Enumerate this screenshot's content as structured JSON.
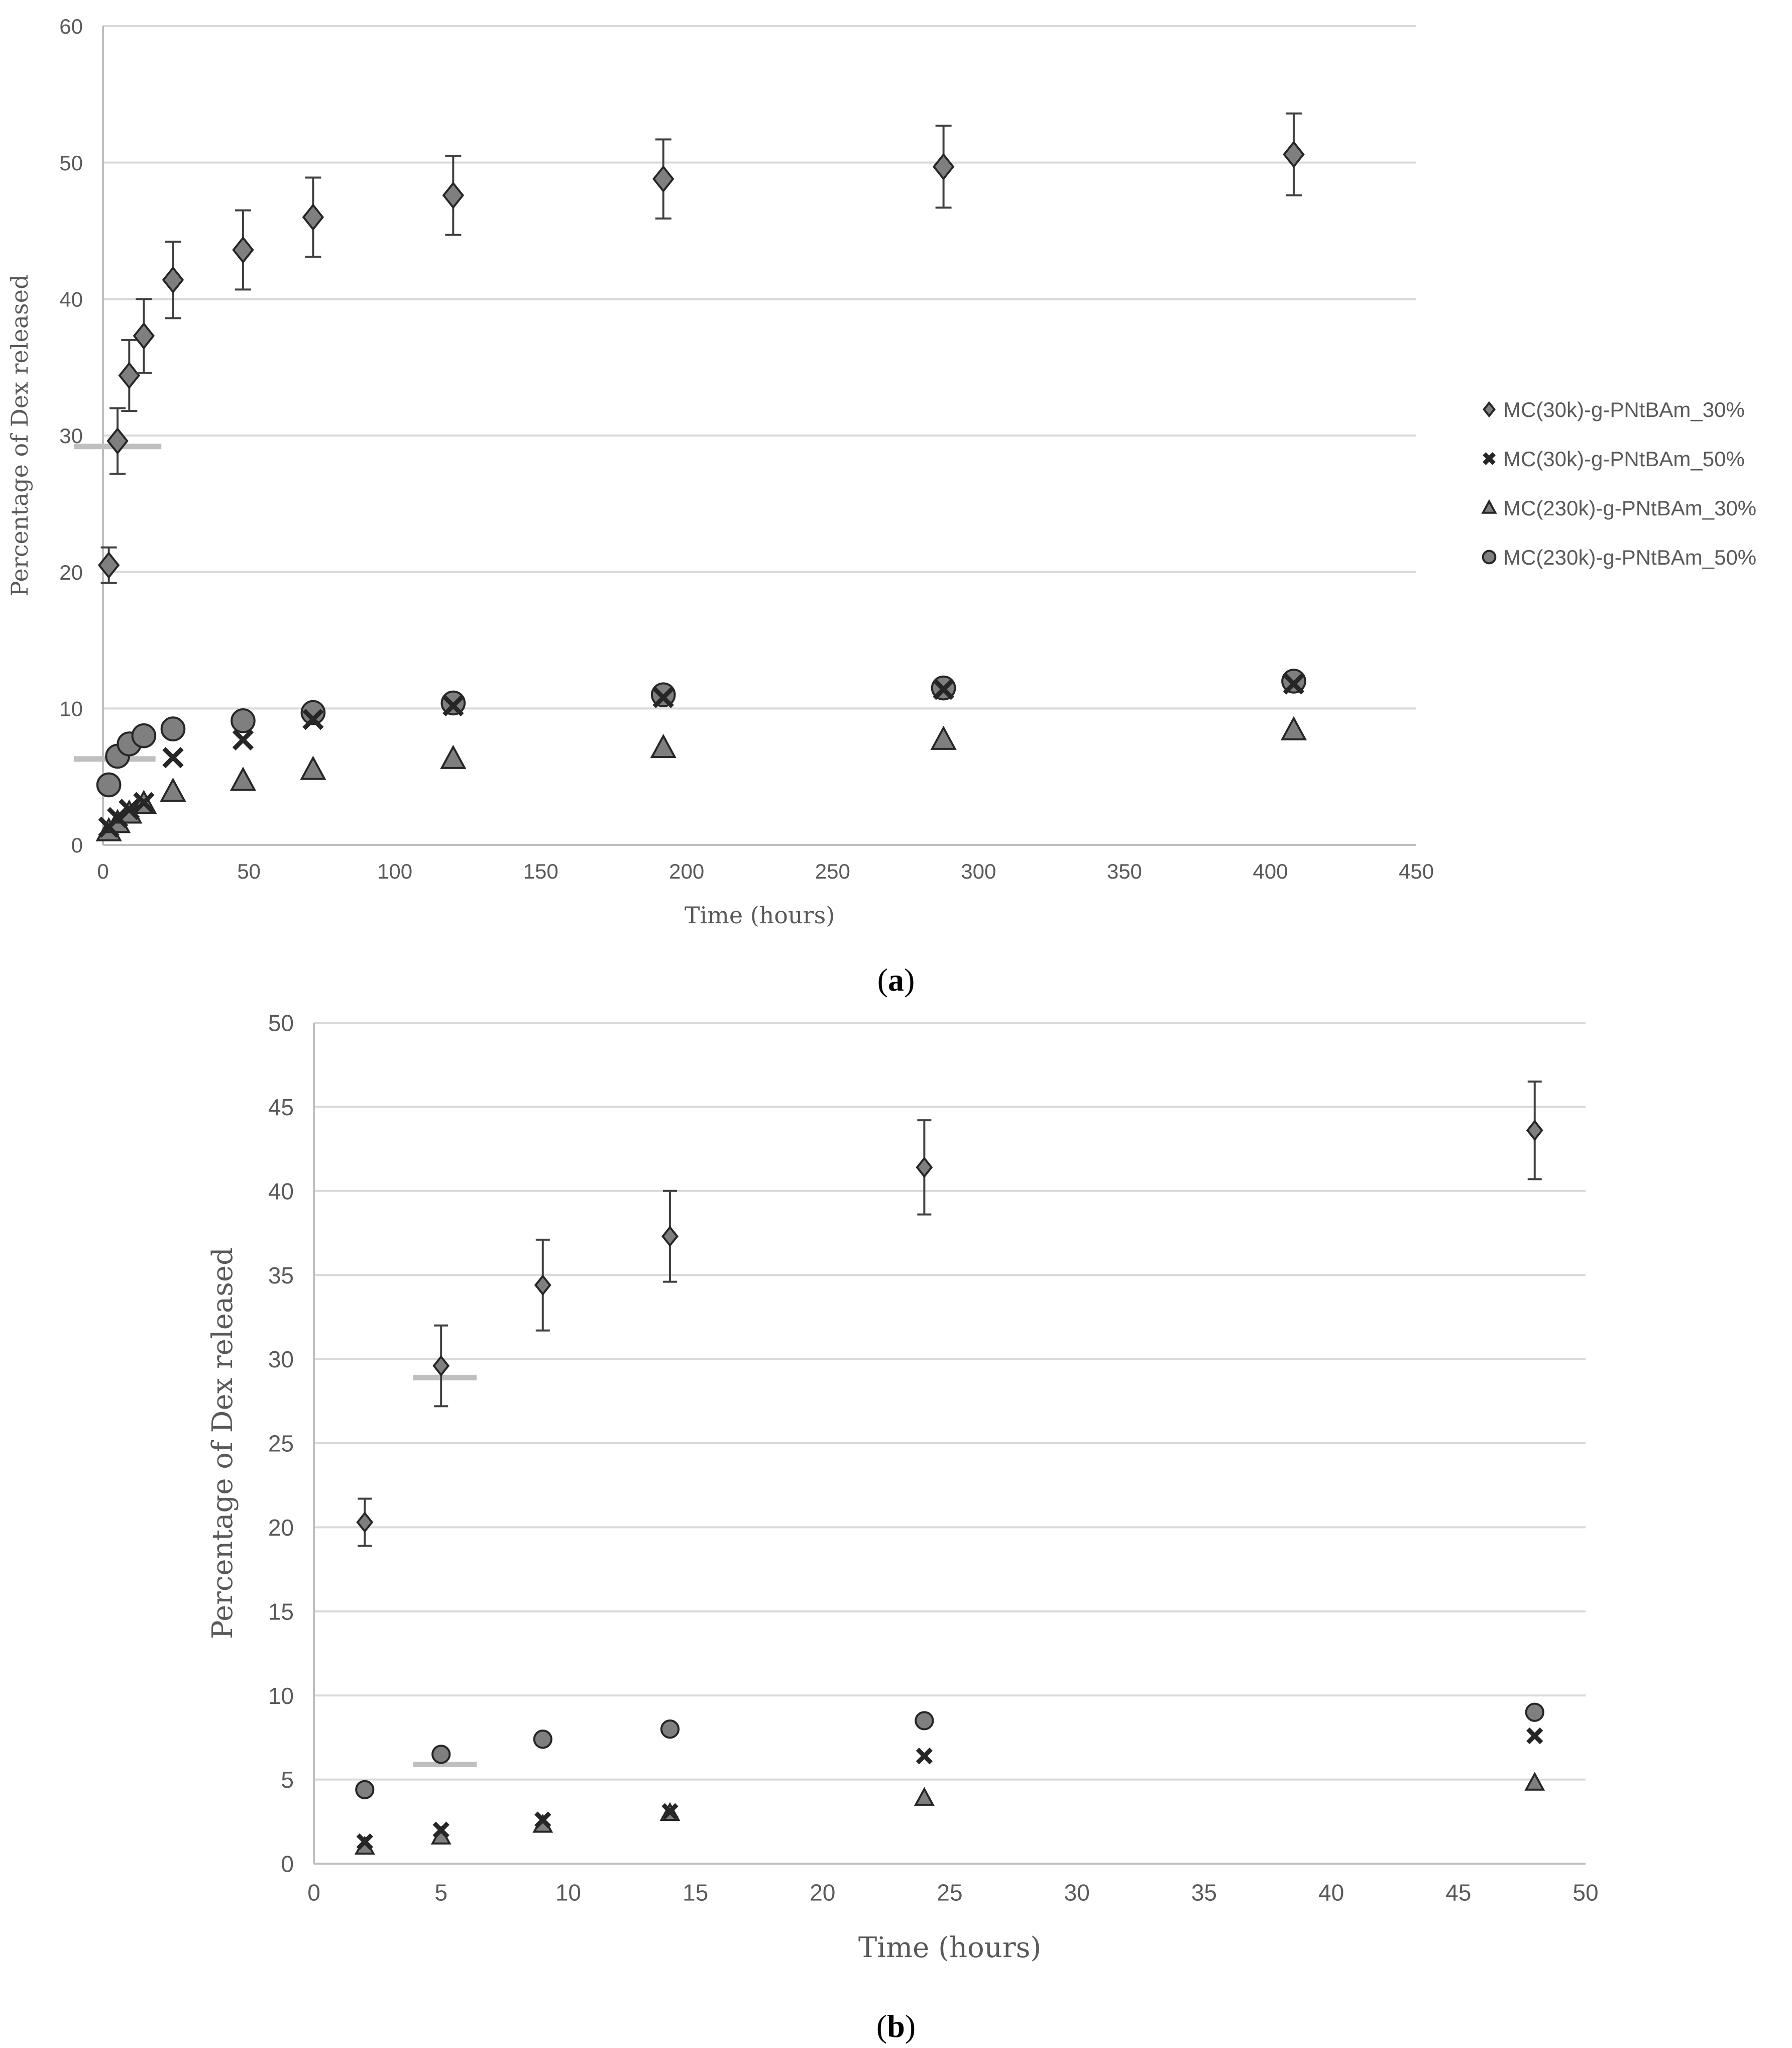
{
  "colors": {
    "marker_fill": "#7f7f7f",
    "marker_stroke": "#262626",
    "errorbar": "#404040",
    "grid": "#d9d9d9",
    "axis": "#bfbfbf",
    "text": "#595959",
    "highlight": "#bfbfbf"
  },
  "chart_data": [
    {
      "panel": "a",
      "caption_open": "(",
      "caption_letter": "a",
      "caption_close": ")",
      "type": "scatter",
      "xlabel": "Time (hours)",
      "ylabel": "Percentage of Dex released",
      "xlim": [
        0,
        450
      ],
      "ylim": [
        0,
        60
      ],
      "xticks": [
        0,
        50,
        100,
        150,
        200,
        250,
        300,
        350,
        400,
        450
      ],
      "yticks": [
        0,
        10,
        20,
        30,
        40,
        50,
        60
      ],
      "grid": true,
      "legend_position": "right",
      "highlight_marks": [
        {
          "x_from": -10,
          "x_to": 20,
          "y": 29.2
        },
        {
          "x_from": -10,
          "x_to": 18,
          "y": 6.3
        }
      ],
      "series": [
        {
          "name": "MC(30k)-g-PNtBAm_30%",
          "marker": "diamond",
          "x": [
            2,
            5,
            9,
            14,
            24,
            48,
            72,
            120,
            192,
            288,
            408
          ],
          "y": [
            20.5,
            29.6,
            34.4,
            37.3,
            41.4,
            43.6,
            46.0,
            47.6,
            48.8,
            49.7,
            50.6
          ],
          "err": [
            1.3,
            2.4,
            2.6,
            2.7,
            2.8,
            2.9,
            2.9,
            2.9,
            2.9,
            3.0,
            3.0
          ]
        },
        {
          "name": "MC(30k)-g-PNtBAm_50%",
          "marker": "x",
          "x": [
            2,
            5,
            9,
            14,
            24,
            48,
            72,
            120,
            192,
            288,
            408
          ],
          "y": [
            1.3,
            2.0,
            2.6,
            3.1,
            6.4,
            7.7,
            9.2,
            10.2,
            10.8,
            11.4,
            11.8
          ],
          "err": []
        },
        {
          "name": "MC(230k)-g-PNtBAm_30%",
          "marker": "triangle",
          "x": [
            2,
            5,
            9,
            14,
            24,
            48,
            72,
            120,
            192,
            288,
            408
          ],
          "y": [
            1.0,
            1.6,
            2.3,
            3.0,
            3.9,
            4.7,
            5.5,
            6.3,
            7.1,
            7.7,
            8.4
          ],
          "err": []
        },
        {
          "name": "MC(230k)-g-PNtBAm_50%",
          "marker": "circle",
          "x": [
            2,
            5,
            9,
            14,
            24,
            48,
            72,
            120,
            192,
            288,
            408
          ],
          "y": [
            4.4,
            6.5,
            7.4,
            8.0,
            8.5,
            9.1,
            9.7,
            10.4,
            11.0,
            11.5,
            12.0
          ],
          "err": []
        }
      ]
    },
    {
      "panel": "b",
      "caption_open": "(",
      "caption_letter": "b",
      "caption_close": ")",
      "type": "scatter",
      "xlabel": "Time (hours)",
      "ylabel": "Percentage of Dex released",
      "xlim": [
        0,
        50
      ],
      "ylim": [
        0,
        50
      ],
      "xticks": [
        0,
        5,
        10,
        15,
        20,
        25,
        30,
        35,
        40,
        45,
        50
      ],
      "yticks": [
        0,
        5,
        10,
        15,
        20,
        25,
        30,
        35,
        40,
        45,
        50
      ],
      "grid": true,
      "legend_position": "none",
      "highlight_marks": [
        {
          "x_from": 3.9,
          "x_to": 6.4,
          "y": 28.9
        },
        {
          "x_from": 3.9,
          "x_to": 6.4,
          "y": 5.9
        }
      ],
      "series": [
        {
          "name": "MC(30k)-g-PNtBAm_30%",
          "marker": "diamond",
          "x": [
            2,
            5,
            9,
            14,
            24,
            48
          ],
          "y": [
            20.3,
            29.6,
            34.4,
            37.3,
            41.4,
            43.6
          ],
          "err": [
            1.4,
            2.4,
            2.7,
            2.7,
            2.8,
            2.9
          ]
        },
        {
          "name": "MC(30k)-g-PNtBAm_50%",
          "marker": "x",
          "x": [
            2,
            5,
            9,
            14,
            24,
            48
          ],
          "y": [
            1.3,
            2.0,
            2.6,
            3.1,
            6.4,
            7.6
          ],
          "err": []
        },
        {
          "name": "MC(230k)-g-PNtBAm_30%",
          "marker": "triangle",
          "x": [
            2,
            5,
            9,
            14,
            24,
            48
          ],
          "y": [
            1.0,
            1.6,
            2.3,
            3.0,
            3.9,
            4.8
          ],
          "err": []
        },
        {
          "name": "MC(230k)-g-PNtBAm_50%",
          "marker": "circle",
          "x": [
            2,
            5,
            9,
            14,
            24,
            48
          ],
          "y": [
            4.4,
            6.5,
            7.4,
            8.0,
            8.5,
            9.0
          ],
          "err": []
        }
      ]
    }
  ]
}
